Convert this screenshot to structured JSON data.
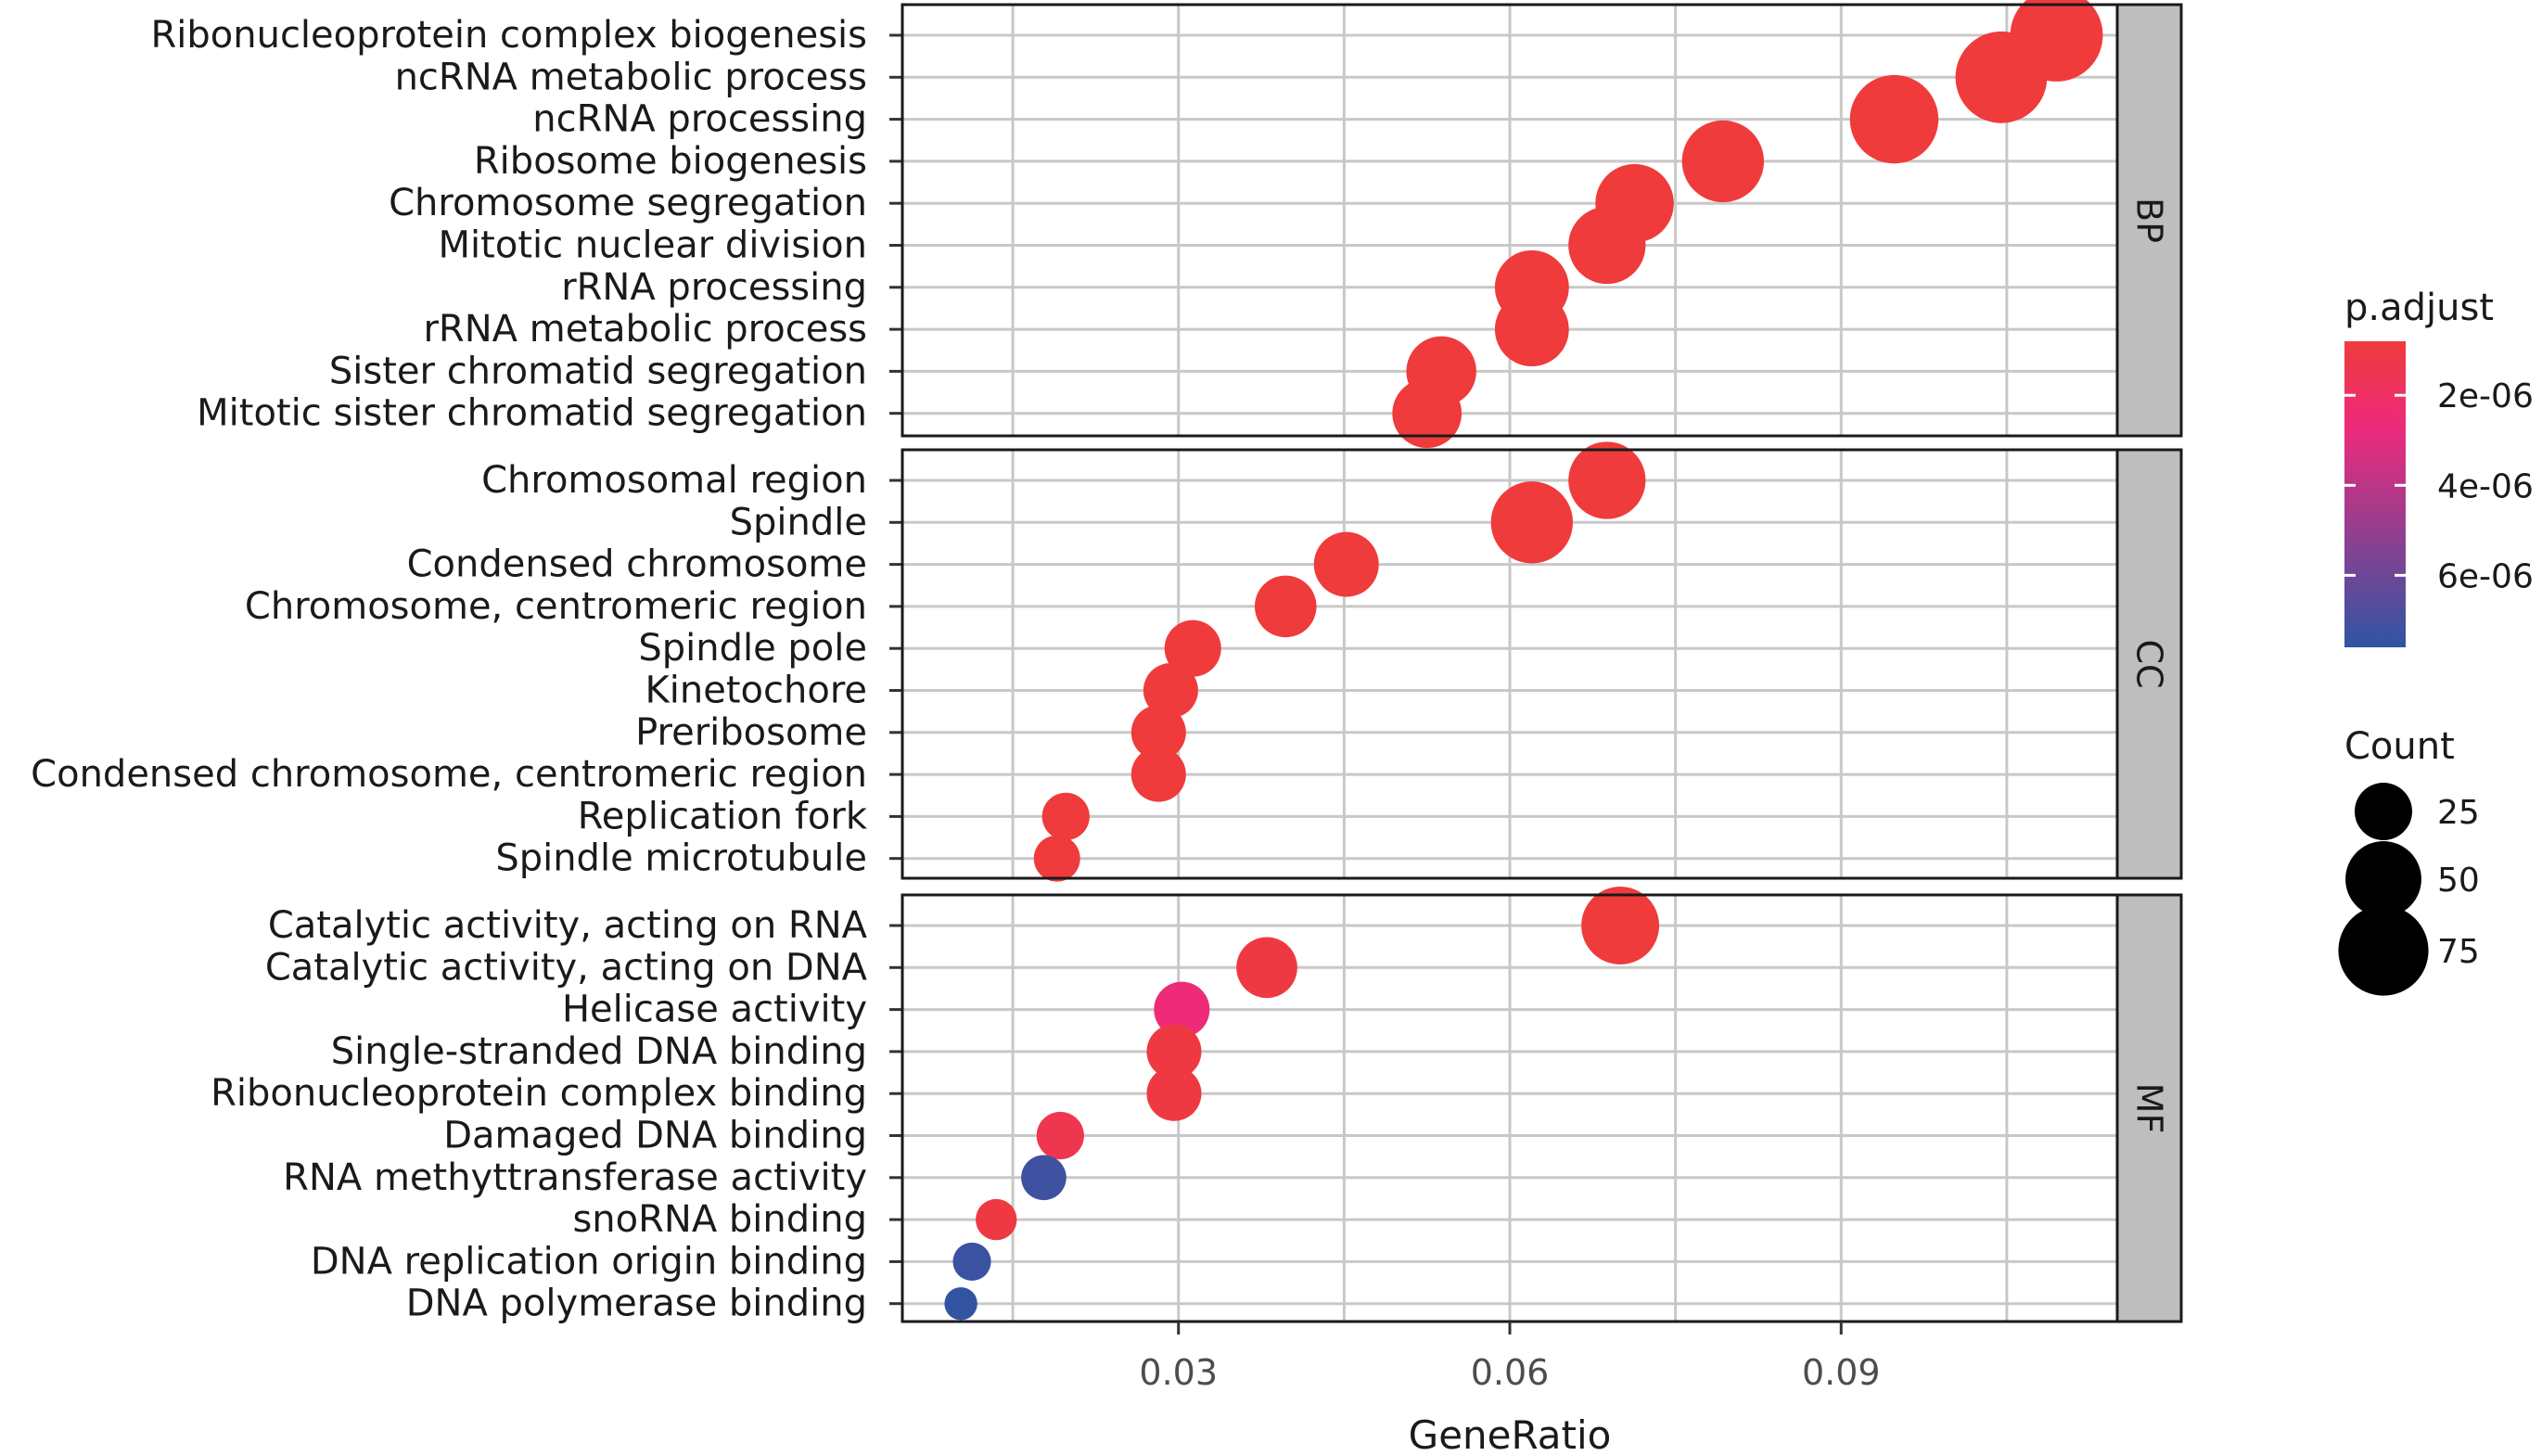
{
  "chart_data": {
    "type": "scatter",
    "xlabel": "GeneRatio",
    "xlim": [
      0.005,
      0.115
    ],
    "xticks": [
      0.03,
      0.06,
      0.09
    ],
    "xtick_labels": [
      "0.03",
      "0.06",
      "0.09"
    ],
    "grid": true,
    "facets": [
      {
        "name": "BP",
        "terms": [
          {
            "label": "Ribonucleoprotein complex biogenesis",
            "gene_ratio": 0.1095,
            "count": 80,
            "p_adjust": 8e-07
          },
          {
            "label": "ncRNA metabolic process",
            "gene_ratio": 0.1045,
            "count": 78,
            "p_adjust": 8e-07
          },
          {
            "label": "ncRNA processing",
            "gene_ratio": 0.0948,
            "count": 72,
            "p_adjust": 8e-07
          },
          {
            "label": "Ribosome biogenesis",
            "gene_ratio": 0.0793,
            "count": 60,
            "p_adjust": 8e-07
          },
          {
            "label": "Chromosome segregation",
            "gene_ratio": 0.0713,
            "count": 54,
            "p_adjust": 8e-07
          },
          {
            "label": "Mitotic nuclear division",
            "gene_ratio": 0.0688,
            "count": 52,
            "p_adjust": 8e-07
          },
          {
            "label": "rRNA processing",
            "gene_ratio": 0.062,
            "count": 47,
            "p_adjust": 8e-07
          },
          {
            "label": "rRNA metabolic process",
            "gene_ratio": 0.062,
            "count": 47,
            "p_adjust": 8e-07
          },
          {
            "label": "Sister chromatid segregation",
            "gene_ratio": 0.0538,
            "count": 41,
            "p_adjust": 8e-07
          },
          {
            "label": "Mitotic sister chromatid segregation",
            "gene_ratio": 0.0525,
            "count": 40,
            "p_adjust": 8e-07
          }
        ]
      },
      {
        "name": "CC",
        "terms": [
          {
            "label": "Chromosomal region",
            "gene_ratio": 0.0688,
            "count": 52,
            "p_adjust": 8e-07
          },
          {
            "label": "Spindle",
            "gene_ratio": 0.062,
            "count": 60,
            "p_adjust": 8e-07
          },
          {
            "label": "Condensed chromosome",
            "gene_ratio": 0.0452,
            "count": 34,
            "p_adjust": 8e-07
          },
          {
            "label": "Chromosome, centromeric region",
            "gene_ratio": 0.0397,
            "count": 30,
            "p_adjust": 8e-07
          },
          {
            "label": "Spindle pole",
            "gene_ratio": 0.0313,
            "count": 24,
            "p_adjust": 8e-07
          },
          {
            "label": "Kinetochore",
            "gene_ratio": 0.0293,
            "count": 22,
            "p_adjust": 8e-07
          },
          {
            "label": "Preribosome",
            "gene_ratio": 0.0282,
            "count": 22,
            "p_adjust": 8e-07
          },
          {
            "label": "Condensed chromosome, centromeric region",
            "gene_ratio": 0.0282,
            "count": 22,
            "p_adjust": 8e-07
          },
          {
            "label": "Replication fork",
            "gene_ratio": 0.0198,
            "count": 15,
            "p_adjust": 8e-07
          },
          {
            "label": "Spindle microtubule",
            "gene_ratio": 0.019,
            "count": 14,
            "p_adjust": 8e-07
          }
        ]
      },
      {
        "name": "MF",
        "terms": [
          {
            "label": "Catalytic activity, acting on RNA",
            "gene_ratio": 0.07,
            "count": 53,
            "p_adjust": 8e-07
          },
          {
            "label": "Catalytic activity, acting on DNA",
            "gene_ratio": 0.038,
            "count": 29,
            "p_adjust": 1e-06
          },
          {
            "label": "Helicase activity",
            "gene_ratio": 0.0303,
            "count": 23,
            "p_adjust": 2.6e-06
          },
          {
            "label": "Single-stranded DNA binding",
            "gene_ratio": 0.0296,
            "count": 22,
            "p_adjust": 1e-06
          },
          {
            "label": "Ribonucleoprotein complex binding",
            "gene_ratio": 0.0296,
            "count": 22,
            "p_adjust": 1e-06
          },
          {
            "label": "Damaged DNA binding",
            "gene_ratio": 0.0193,
            "count": 15,
            "p_adjust": 1.4e-06
          },
          {
            "label": "RNA methyttransferase activity",
            "gene_ratio": 0.0178,
            "count": 13,
            "p_adjust": 7.2e-06
          },
          {
            "label": "snoRNA binding",
            "gene_ratio": 0.0135,
            "count": 10,
            "p_adjust": 1e-06
          },
          {
            "label": "DNA replication origin binding",
            "gene_ratio": 0.0113,
            "count": 8,
            "p_adjust": 7.3e-06
          },
          {
            "label": "DNA polymerase binding",
            "gene_ratio": 0.0103,
            "count": 5,
            "p_adjust": 7.5e-06
          }
        ]
      }
    ],
    "color_legend": {
      "title": "p.adjust",
      "breaks": [
        2e-06,
        4e-06,
        6e-06
      ],
      "break_labels": [
        "2e-06",
        "4e-06",
        "6e-06"
      ],
      "range": [
        8e-07,
        7.6e-06
      ],
      "low_color": "#EF3B3B",
      "mid_color": "#EE2A7B",
      "high_color": "#2F55A4"
    },
    "size_legend": {
      "title": "Count",
      "breaks": [
        25,
        50,
        75
      ],
      "break_labels": [
        "25",
        "50",
        "75"
      ]
    }
  },
  "colors": {
    "strip_fill": "#bebebe",
    "grid": "#c8c8c8",
    "panel_border": "#1a1a1a"
  }
}
